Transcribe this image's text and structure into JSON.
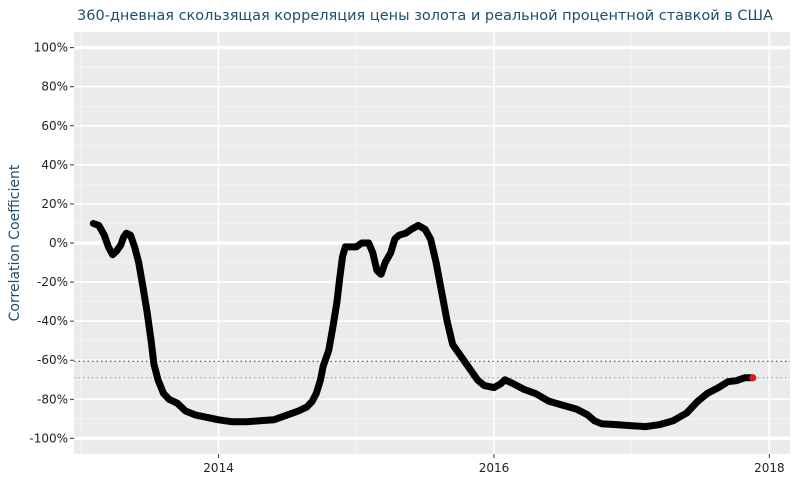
{
  "chart_data": {
    "type": "line",
    "title": "360-дневная скользящая корреляция цены золота и реальной процентной ставкой в США",
    "xlabel": "",
    "ylabel": "Correlation Coefficient",
    "xlim": [
      2012.95,
      2018.15
    ],
    "ylim": [
      -1.08,
      1.08
    ],
    "x_ticks": [
      {
        "value": 2014,
        "label": "2014"
      },
      {
        "value": 2016,
        "label": "2016"
      },
      {
        "value": 2018,
        "label": "2018"
      }
    ],
    "y_ticks": [
      {
        "value": 1.0,
        "label": "100%"
      },
      {
        "value": 0.8,
        "label": "80%"
      },
      {
        "value": 0.6,
        "label": "60%"
      },
      {
        "value": 0.4,
        "label": "40%"
      },
      {
        "value": 0.2,
        "label": "20%"
      },
      {
        "value": 0.0,
        "label": "0%"
      },
      {
        "value": -0.2,
        "label": "-20%"
      },
      {
        "value": -0.4,
        "label": "-40%"
      },
      {
        "value": -0.6,
        "label": "-60%"
      },
      {
        "value": -0.8,
        "label": "-80%"
      },
      {
        "value": -1.0,
        "label": "-100%"
      }
    ],
    "grid": true,
    "reference_lines": [
      {
        "y": -0.605,
        "color": "#2b2b8c"
      },
      {
        "y": -0.69,
        "color": "#c08a9a"
      }
    ],
    "series": [
      {
        "color": "#000000",
        "points": [
          [
            2013.09,
            0.1
          ],
          [
            2013.13,
            0.09
          ],
          [
            2013.17,
            0.04
          ],
          [
            2013.2,
            -0.02
          ],
          [
            2013.23,
            -0.06
          ],
          [
            2013.26,
            -0.04
          ],
          [
            2013.29,
            -0.01
          ],
          [
            2013.31,
            0.03
          ],
          [
            2013.33,
            0.05
          ],
          [
            2013.36,
            0.04
          ],
          [
            2013.39,
            -0.02
          ],
          [
            2013.42,
            -0.1
          ],
          [
            2013.45,
            -0.22
          ],
          [
            2013.48,
            -0.35
          ],
          [
            2013.51,
            -0.5
          ],
          [
            2013.53,
            -0.62
          ],
          [
            2013.56,
            -0.7
          ],
          [
            2013.6,
            -0.77
          ],
          [
            2013.64,
            -0.8
          ],
          [
            2013.7,
            -0.82
          ],
          [
            2013.76,
            -0.86
          ],
          [
            2013.83,
            -0.88
          ],
          [
            2013.9,
            -0.89
          ],
          [
            2014.0,
            -0.905
          ],
          [
            2014.1,
            -0.915
          ],
          [
            2014.2,
            -0.915
          ],
          [
            2014.3,
            -0.91
          ],
          [
            2014.4,
            -0.905
          ],
          [
            2014.5,
            -0.88
          ],
          [
            2014.58,
            -0.86
          ],
          [
            2014.64,
            -0.84
          ],
          [
            2014.68,
            -0.81
          ],
          [
            2014.71,
            -0.77
          ],
          [
            2014.74,
            -0.7
          ],
          [
            2014.76,
            -0.63
          ],
          [
            2014.8,
            -0.55
          ],
          [
            2014.83,
            -0.43
          ],
          [
            2014.86,
            -0.3
          ],
          [
            2014.88,
            -0.18
          ],
          [
            2014.9,
            -0.07
          ],
          [
            2014.92,
            -0.02
          ],
          [
            2014.97,
            -0.02
          ],
          [
            2015.0,
            -0.02
          ],
          [
            2015.04,
            0.0
          ],
          [
            2015.09,
            0.0
          ],
          [
            2015.12,
            -0.05
          ],
          [
            2015.15,
            -0.14
          ],
          [
            2015.18,
            -0.16
          ],
          [
            2015.21,
            -0.1
          ],
          [
            2015.25,
            -0.05
          ],
          [
            2015.28,
            0.02
          ],
          [
            2015.31,
            0.04
          ],
          [
            2015.36,
            0.05
          ],
          [
            2015.4,
            0.07
          ],
          [
            2015.45,
            0.09
          ],
          [
            2015.5,
            0.07
          ],
          [
            2015.54,
            0.02
          ],
          [
            2015.58,
            -0.1
          ],
          [
            2015.62,
            -0.25
          ],
          [
            2015.66,
            -0.4
          ],
          [
            2015.7,
            -0.52
          ],
          [
            2015.74,
            -0.56
          ],
          [
            2015.78,
            -0.6
          ],
          [
            2015.83,
            -0.65
          ],
          [
            2015.88,
            -0.7
          ],
          [
            2015.93,
            -0.73
          ],
          [
            2016.0,
            -0.74
          ],
          [
            2016.05,
            -0.72
          ],
          [
            2016.08,
            -0.7
          ],
          [
            2016.14,
            -0.72
          ],
          [
            2016.22,
            -0.75
          ],
          [
            2016.3,
            -0.77
          ],
          [
            2016.4,
            -0.81
          ],
          [
            2016.5,
            -0.83
          ],
          [
            2016.6,
            -0.85
          ],
          [
            2016.68,
            -0.88
          ],
          [
            2016.73,
            -0.91
          ],
          [
            2016.78,
            -0.925
          ],
          [
            2016.9,
            -0.93
          ],
          [
            2017.0,
            -0.935
          ],
          [
            2017.1,
            -0.94
          ],
          [
            2017.2,
            -0.93
          ],
          [
            2017.3,
            -0.91
          ],
          [
            2017.4,
            -0.87
          ],
          [
            2017.48,
            -0.81
          ],
          [
            2017.55,
            -0.77
          ],
          [
            2017.63,
            -0.74
          ],
          [
            2017.7,
            -0.71
          ],
          [
            2017.76,
            -0.705
          ],
          [
            2017.82,
            -0.69
          ],
          [
            2017.88,
            -0.69
          ]
        ]
      }
    ],
    "last_point": {
      "x": 2017.88,
      "y": -0.69,
      "color": "#e31a1c"
    }
  }
}
